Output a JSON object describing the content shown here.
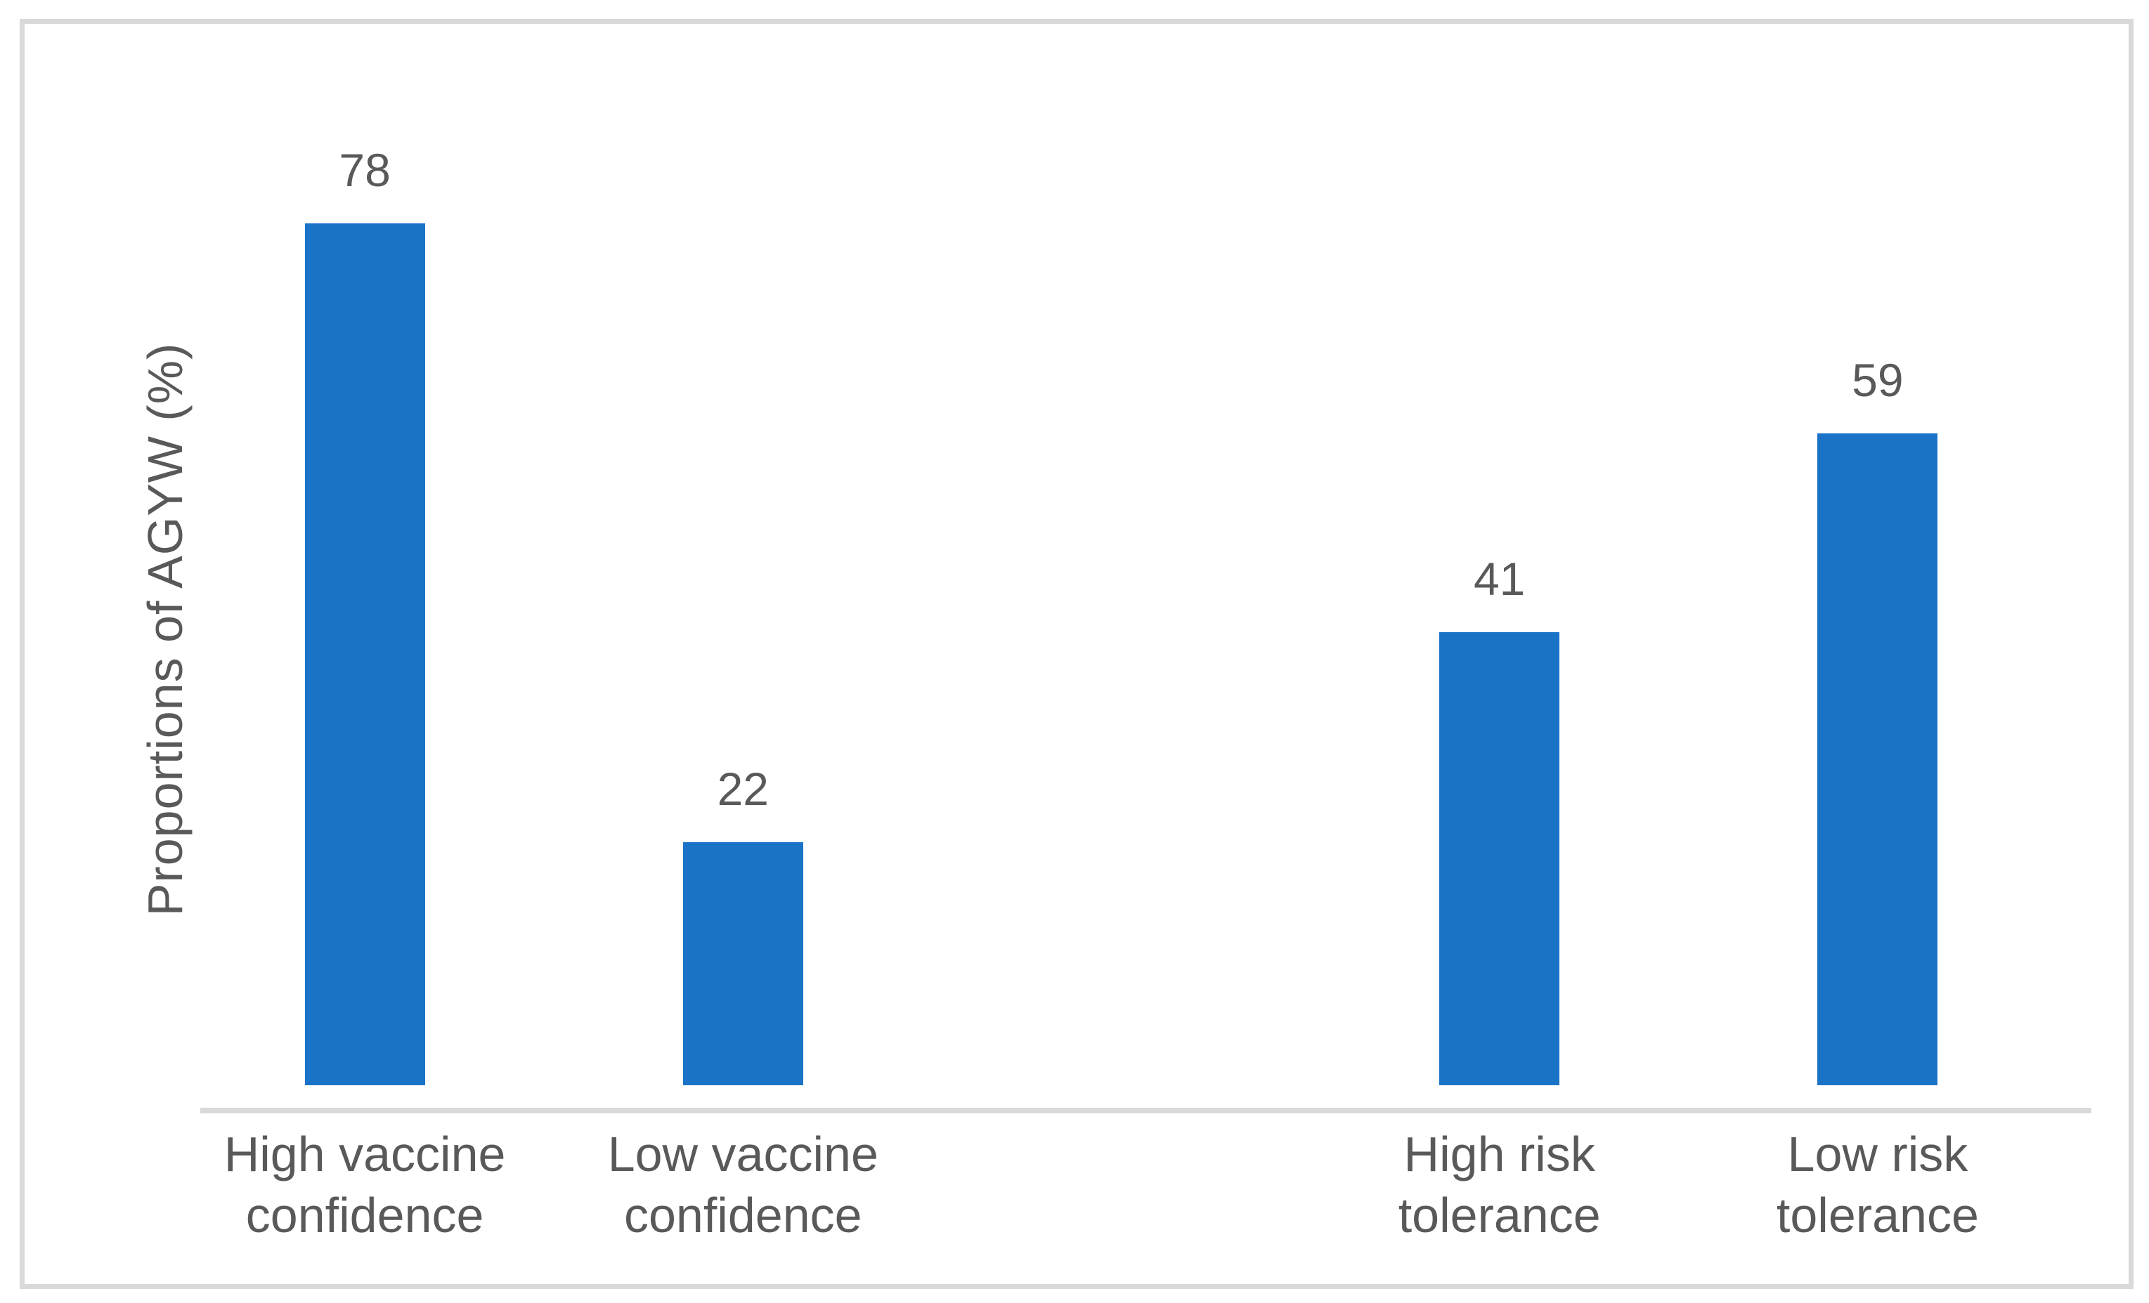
{
  "chart_data": {
    "type": "bar",
    "title": "",
    "xlabel": "",
    "ylabel": "Proportions of AGYW (%)",
    "categories": [
      "High vaccine confidence",
      "Low vaccine confidence",
      "High risk tolerance",
      "Low risk tolerance"
    ],
    "category_lines": [
      [
        "High vaccine",
        "confidence"
      ],
      [
        "Low vaccine",
        "confidence"
      ],
      [
        "High risk",
        "tolerance"
      ],
      [
        "Low risk",
        "tolerance"
      ]
    ],
    "values": [
      78,
      22,
      41,
      59
    ],
    "data_labels": [
      "78",
      "22",
      "41",
      "59"
    ],
    "ylim": [
      0,
      80
    ],
    "grid": false,
    "legend": "none",
    "yaxis_ticks": "none",
    "slots": [
      1,
      2,
      4,
      5
    ],
    "total_slots": 5,
    "bar_color": "#1b73c7",
    "text_color": "#595959",
    "axis_line_color": "#d9d9d9",
    "frame_border_color": "#d9d9d9",
    "background_color": "#ffffff"
  }
}
